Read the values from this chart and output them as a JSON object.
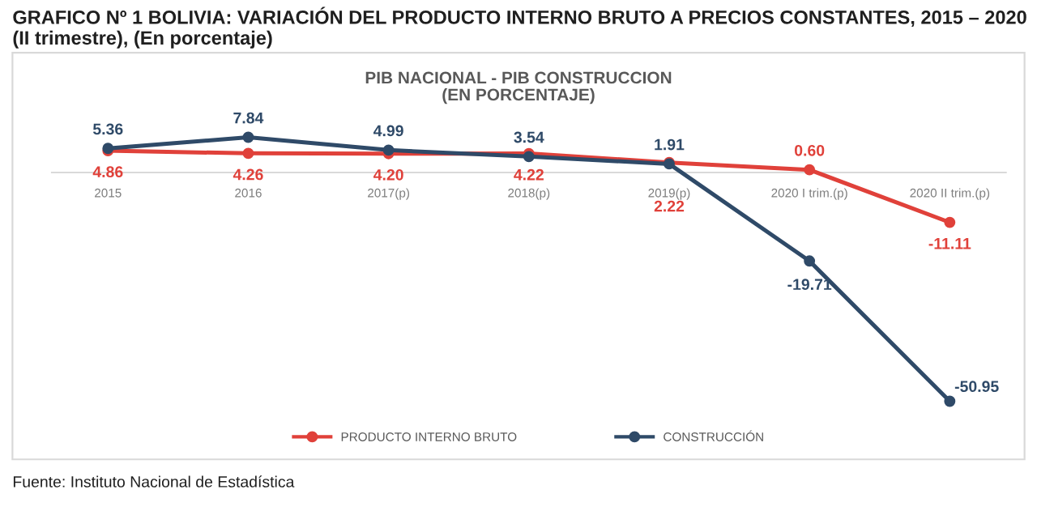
{
  "chart_data": {
    "type": "line",
    "title": "GRAFICO Nº 1 BOLIVIA: VARIACIÓN DEL PRODUCTO INTERNO BRUTO A PRECIOS CONSTANTES, 2015 – 2020 (II trimestre), (En porcentaje)",
    "subtitle": "PIB NACIONAL - PIB CONSTRUCCION\n(EN PORCENTAJE)",
    "categories": [
      "2015",
      "2016",
      "2017(p)",
      "2018(p)",
      "2019(p)",
      "2020 I trim.(p)",
      "2020 II trim.(p)"
    ],
    "series": [
      {
        "name": "PRODUCTO INTERNO BRUTO",
        "color": "#e0413a",
        "values": [
          4.86,
          4.26,
          4.2,
          4.22,
          2.22,
          0.6,
          -11.11
        ],
        "value_labels": [
          "4.86",
          "4.26",
          "4.20",
          "4.22",
          "2.22",
          "0.60",
          "-11.11"
        ]
      },
      {
        "name": "CONSTRUCCIÓN",
        "color": "#2f4a68",
        "values": [
          5.36,
          7.84,
          4.99,
          3.54,
          1.91,
          -19.71,
          -50.95
        ],
        "value_labels": [
          "5.36",
          "7.84",
          "4.99",
          "3.54",
          "1.91",
          "-19.71",
          "-50.95"
        ]
      }
    ],
    "marker": "circle",
    "line_style": "solid",
    "grid": false,
    "legend": "bottom",
    "annotations": [
      "Fuente: Instituto Nacional de Estadística"
    ]
  }
}
